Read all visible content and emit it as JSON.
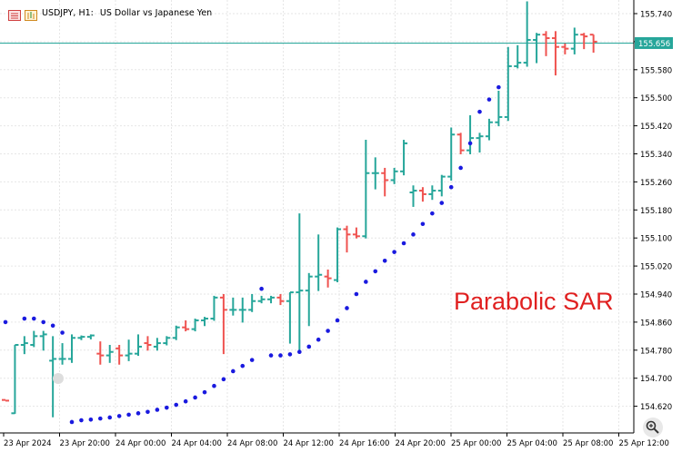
{
  "header": {
    "symbol": "USDJPY, H1:",
    "description": "US Dollar vs Japanese Yen",
    "icons": [
      "chart-list-icon",
      "trade-panel-icon"
    ]
  },
  "annotation": {
    "label": "Parabolic SAR"
  },
  "colors": {
    "bull": "#26a69a",
    "bear": "#ef5350",
    "sar": "#1a1adf",
    "price_line": "#26a69a",
    "grid": "#e6e6e6",
    "axis": "#000000",
    "annotation": "#e02020"
  },
  "chart_data": {
    "type": "ohlc",
    "symbol": "USDJPY",
    "timeframe": "H1",
    "current_price": 155.656,
    "ylim": [
      154.57,
      155.775
    ],
    "y_ticks": [
      "155.740",
      "155.660",
      "155.580",
      "155.500",
      "155.420",
      "155.340",
      "155.260",
      "155.180",
      "155.100",
      "155.020",
      "154.940",
      "154.860",
      "154.780",
      "154.700",
      "154.620"
    ],
    "x_ticks": [
      "23 Apr 2024",
      "23 Apr 20:00",
      "24 Apr 00:00",
      "24 Apr 04:00",
      "24 Apr 08:00",
      "24 Apr 12:00",
      "24 Apr 16:00",
      "24 Apr 20:00",
      "25 Apr 00:00",
      "25 Apr 04:00",
      "25 Apr 08:00",
      "25 Apr 12:00"
    ],
    "candles": [
      {
        "o": 154.638,
        "h": 154.638,
        "l": 154.638,
        "c": 154.636
      },
      {
        "o": 154.6,
        "h": 154.795,
        "l": 154.6,
        "c": 154.795
      },
      {
        "o": 154.795,
        "h": 154.82,
        "l": 154.77,
        "c": 154.8
      },
      {
        "o": 154.795,
        "h": 154.835,
        "l": 154.79,
        "c": 154.82
      },
      {
        "o": 154.82,
        "h": 154.835,
        "l": 154.78,
        "c": 154.825
      },
      {
        "o": 154.75,
        "h": 154.82,
        "l": 154.59,
        "c": 154.755
      },
      {
        "o": 154.755,
        "h": 154.8,
        "l": 154.74,
        "c": 154.755
      },
      {
        "o": 154.755,
        "h": 154.825,
        "l": 154.745,
        "c": 154.815
      },
      {
        "o": 154.815,
        "h": 154.822,
        "l": 154.81,
        "c": 154.818
      },
      {
        "o": 154.818,
        "h": 154.825,
        "l": 154.812,
        "c": 154.822
      },
      {
        "o": 154.77,
        "h": 154.805,
        "l": 154.74,
        "c": 154.765
      },
      {
        "o": 154.765,
        "h": 154.795,
        "l": 154.745,
        "c": 154.775
      },
      {
        "o": 154.785,
        "h": 154.795,
        "l": 154.74,
        "c": 154.765
      },
      {
        "o": 154.765,
        "h": 154.81,
        "l": 154.75,
        "c": 154.77
      },
      {
        "o": 154.77,
        "h": 154.825,
        "l": 154.765,
        "c": 154.79
      },
      {
        "o": 154.8,
        "h": 154.82,
        "l": 154.78,
        "c": 154.795
      },
      {
        "o": 154.79,
        "h": 154.815,
        "l": 154.78,
        "c": 154.8
      },
      {
        "o": 154.8,
        "h": 154.82,
        "l": 154.795,
        "c": 154.815
      },
      {
        "o": 154.815,
        "h": 154.85,
        "l": 154.81,
        "c": 154.845
      },
      {
        "o": 154.845,
        "h": 154.865,
        "l": 154.835,
        "c": 154.84
      },
      {
        "o": 154.84,
        "h": 154.87,
        "l": 154.835,
        "c": 154.865
      },
      {
        "o": 154.865,
        "h": 154.875,
        "l": 154.85,
        "c": 154.87
      },
      {
        "o": 154.87,
        "h": 154.935,
        "l": 154.865,
        "c": 154.93
      },
      {
        "o": 154.93,
        "h": 154.94,
        "l": 154.77,
        "c": 154.895
      },
      {
        "o": 154.895,
        "h": 154.93,
        "l": 154.88,
        "c": 154.895
      },
      {
        "o": 154.895,
        "h": 154.93,
        "l": 154.86,
        "c": 154.895
      },
      {
        "o": 154.895,
        "h": 154.94,
        "l": 154.89,
        "c": 154.92
      },
      {
        "o": 154.92,
        "h": 154.935,
        "l": 154.915,
        "c": 154.925
      },
      {
        "o": 154.925,
        "h": 154.935,
        "l": 154.915,
        "c": 154.93
      },
      {
        "o": 154.93,
        "h": 154.94,
        "l": 154.91,
        "c": 154.92
      },
      {
        "o": 154.92,
        "h": 154.945,
        "l": 154.8,
        "c": 154.945
      },
      {
        "o": 154.945,
        "h": 155.17,
        "l": 154.78,
        "c": 154.95
      },
      {
        "o": 154.95,
        "h": 155.0,
        "l": 154.85,
        "c": 154.99
      },
      {
        "o": 154.99,
        "h": 155.11,
        "l": 154.95,
        "c": 154.995
      },
      {
        "o": 154.99,
        "h": 155.01,
        "l": 154.96,
        "c": 154.985
      },
      {
        "o": 154.98,
        "h": 155.13,
        "l": 154.975,
        "c": 155.125
      },
      {
        "o": 155.125,
        "h": 155.135,
        "l": 155.06,
        "c": 155.11
      },
      {
        "o": 155.11,
        "h": 155.13,
        "l": 155.1,
        "c": 155.105
      },
      {
        "o": 155.105,
        "h": 155.38,
        "l": 155.1,
        "c": 155.285
      },
      {
        "o": 155.285,
        "h": 155.33,
        "l": 155.24,
        "c": 155.285
      },
      {
        "o": 155.285,
        "h": 155.3,
        "l": 155.22,
        "c": 155.265
      },
      {
        "o": 155.265,
        "h": 155.3,
        "l": 155.255,
        "c": 155.29
      },
      {
        "o": 155.29,
        "h": 155.38,
        "l": 155.28,
        "c": 155.37
      },
      {
        "o": 155.23,
        "h": 155.25,
        "l": 155.19,
        "c": 155.235
      },
      {
        "o": 155.235,
        "h": 155.245,
        "l": 155.205,
        "c": 155.225
      },
      {
        "o": 155.225,
        "h": 155.25,
        "l": 155.21,
        "c": 155.235
      },
      {
        "o": 155.235,
        "h": 155.28,
        "l": 155.22,
        "c": 155.275
      },
      {
        "o": 155.275,
        "h": 155.415,
        "l": 155.265,
        "c": 155.395
      },
      {
        "o": 155.395,
        "h": 155.4,
        "l": 155.34,
        "c": 155.35
      },
      {
        "o": 155.35,
        "h": 155.45,
        "l": 155.34,
        "c": 155.385
      },
      {
        "o": 155.385,
        "h": 155.4,
        "l": 155.345,
        "c": 155.39
      },
      {
        "o": 155.39,
        "h": 155.44,
        "l": 155.38,
        "c": 155.43
      },
      {
        "o": 155.43,
        "h": 155.52,
        "l": 155.42,
        "c": 155.445
      },
      {
        "o": 155.445,
        "h": 155.645,
        "l": 155.435,
        "c": 155.59
      },
      {
        "o": 155.59,
        "h": 155.65,
        "l": 155.585,
        "c": 155.6
      },
      {
        "o": 155.6,
        "h": 155.775,
        "l": 155.59,
        "c": 155.665
      },
      {
        "o": 155.665,
        "h": 155.685,
        "l": 155.6,
        "c": 155.68
      },
      {
        "o": 155.68,
        "h": 155.69,
        "l": 155.62,
        "c": 155.67
      },
      {
        "o": 155.67,
        "h": 155.69,
        "l": 155.565,
        "c": 155.645
      },
      {
        "o": 155.645,
        "h": 155.655,
        "l": 155.625,
        "c": 155.64
      },
      {
        "o": 155.64,
        "h": 155.7,
        "l": 155.625,
        "c": 155.68
      },
      {
        "o": 155.68,
        "h": 155.685,
        "l": 155.64,
        "c": 155.675
      },
      {
        "o": 155.68,
        "h": 155.68,
        "l": 155.63,
        "c": 155.66
      }
    ],
    "sar": [
      {
        "i": 0,
        "v": 154.86
      },
      {
        "i": 2,
        "v": 154.87
      },
      {
        "i": 3,
        "v": 154.87
      },
      {
        "i": 4,
        "v": 154.86
      },
      {
        "i": 5,
        "v": 154.85
      },
      {
        "i": 6,
        "v": 154.83
      },
      {
        "i": 7,
        "v": 154.575
      },
      {
        "i": 8,
        "v": 154.58
      },
      {
        "i": 9,
        "v": 154.582
      },
      {
        "i": 10,
        "v": 154.585
      },
      {
        "i": 11,
        "v": 154.588
      },
      {
        "i": 12,
        "v": 154.592
      },
      {
        "i": 13,
        "v": 154.596
      },
      {
        "i": 14,
        "v": 154.6
      },
      {
        "i": 15,
        "v": 154.604
      },
      {
        "i": 16,
        "v": 154.61
      },
      {
        "i": 17,
        "v": 154.616
      },
      {
        "i": 18,
        "v": 154.624
      },
      {
        "i": 19,
        "v": 154.634
      },
      {
        "i": 20,
        "v": 154.645
      },
      {
        "i": 21,
        "v": 154.66
      },
      {
        "i": 22,
        "v": 154.678
      },
      {
        "i": 23,
        "v": 154.697
      },
      {
        "i": 24,
        "v": 154.72
      },
      {
        "i": 25,
        "v": 154.735
      },
      {
        "i": 26,
        "v": 154.752
      },
      {
        "i": 27,
        "v": 154.955
      },
      {
        "i": 28,
        "v": 154.765
      },
      {
        "i": 29,
        "v": 154.765
      },
      {
        "i": 30,
        "v": 154.768
      },
      {
        "i": 31,
        "v": 154.775
      },
      {
        "i": 32,
        "v": 154.79
      },
      {
        "i": 33,
        "v": 154.81
      },
      {
        "i": 34,
        "v": 154.835
      },
      {
        "i": 35,
        "v": 154.865
      },
      {
        "i": 36,
        "v": 154.9
      },
      {
        "i": 37,
        "v": 154.94
      },
      {
        "i": 38,
        "v": 154.975
      },
      {
        "i": 39,
        "v": 155.005
      },
      {
        "i": 40,
        "v": 155.035
      },
      {
        "i": 41,
        "v": 155.06
      },
      {
        "i": 42,
        "v": 155.085
      },
      {
        "i": 43,
        "v": 155.11
      },
      {
        "i": 44,
        "v": 155.14
      },
      {
        "i": 45,
        "v": 155.17
      },
      {
        "i": 46,
        "v": 155.2
      },
      {
        "i": 47,
        "v": 155.245
      },
      {
        "i": 48,
        "v": 155.3
      },
      {
        "i": 49,
        "v": 155.37
      },
      {
        "i": 50,
        "v": 155.46
      },
      {
        "i": 51,
        "v": 155.495
      },
      {
        "i": 52,
        "v": 155.53
      }
    ]
  }
}
